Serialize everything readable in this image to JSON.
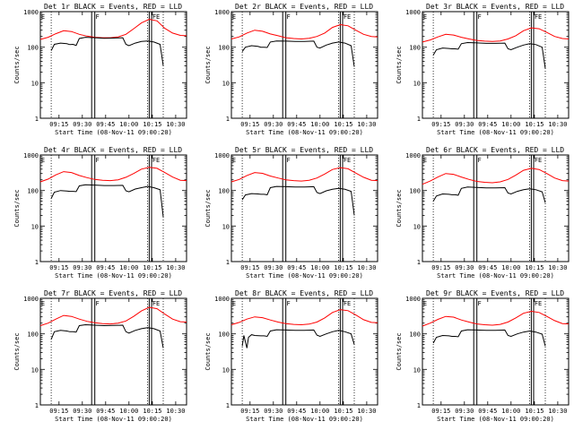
{
  "chart_data": {
    "type": "line",
    "layout": {
      "rows": 3,
      "cols": 3
    },
    "x_ticks": [
      "09:15",
      "09:30",
      "09:45",
      "10:00",
      "10:15",
      "10:30"
    ],
    "x_tick_values": [
      15,
      30,
      45,
      60,
      75,
      90
    ],
    "x_range_minutes": [
      3,
      97
    ],
    "y_scale": "log",
    "y_ticks": [
      "1",
      "10",
      "100",
      "1000"
    ],
    "ylim": [
      1,
      1000
    ],
    "ylabel": "Counts/sec",
    "xlabel": "Start Time (08-Nov-11 09:00:20)",
    "vertical_dotted_lines_minutes": [
      10,
      72,
      82
    ],
    "vertical_solid_lines_minutes": [
      36,
      38,
      73,
      74.5
    ],
    "region_labels": [
      {
        "text": "E",
        "x": 3.5
      },
      {
        "text": "F",
        "x": 38.5
      },
      {
        "text": "FE",
        "x": 75
      }
    ],
    "panels": [
      {
        "title": "Det 1r BLACK = Events, RED = LLD",
        "series": [
          {
            "color": "#ff0000",
            "x": [
              3,
              8,
              13,
              18,
              23,
              28,
              33,
              38,
              43,
              48,
              53,
              58,
              63,
              68,
              73,
              78,
              83,
              88,
              93,
              97
            ],
            "y": [
              165,
              190,
              240,
              290,
              275,
              230,
              205,
              190,
              185,
              185,
              195,
              230,
              330,
              480,
              610,
              550,
              340,
              250,
              215,
              210
            ]
          },
          {
            "color": "#000000",
            "x": [
              10,
              12,
              16,
              20,
              22,
              24,
              26,
              28,
              32,
              38,
              44,
              50,
              56,
              58,
              60,
              64,
              68,
              72,
              76,
              80,
              82
            ],
            "y": [
              80,
              120,
              130,
              125,
              118,
              120,
              112,
              175,
              190,
              185,
              178,
              180,
              185,
              120,
              110,
              130,
              145,
              150,
              140,
              120,
              30
            ]
          }
        ]
      },
      {
        "title": "Det 2r BLACK = Events, RED = LLD",
        "series": [
          {
            "color": "#ff0000",
            "x": [
              3,
              8,
              13,
              18,
              23,
              28,
              33,
              38,
              43,
              48,
              53,
              58,
              63,
              68,
              73,
              78,
              83,
              88,
              93,
              97
            ],
            "y": [
              170,
              195,
              250,
              300,
              280,
              235,
              210,
              185,
              175,
              170,
              178,
              200,
              250,
              360,
              430,
              400,
              300,
              230,
              200,
              195
            ]
          },
          {
            "color": "#000000",
            "x": [
              10,
              12,
              16,
              20,
              22,
              24,
              26,
              28,
              32,
              38,
              44,
              50,
              56,
              58,
              60,
              64,
              68,
              72,
              76,
              80,
              82
            ],
            "y": [
              75,
              100,
              110,
              105,
              100,
              100,
              98,
              140,
              150,
              148,
              145,
              145,
              148,
              100,
              95,
              115,
              130,
              140,
              130,
              110,
              28
            ]
          }
        ]
      },
      {
        "title": "Det 3r BLACK = Events, RED = LLD",
        "series": [
          {
            "color": "#ff0000",
            "x": [
              3,
              8,
              13,
              18,
              23,
              28,
              33,
              38,
              43,
              48,
              53,
              58,
              63,
              68,
              73,
              78,
              83,
              88,
              93,
              97
            ],
            "y": [
              140,
              160,
              195,
              230,
              220,
              190,
              170,
              155,
              148,
              145,
              150,
              170,
              210,
              290,
              350,
              330,
              260,
              200,
              175,
              170
            ]
          },
          {
            "color": "#000000",
            "x": [
              10,
              12,
              16,
              20,
              22,
              24,
              26,
              28,
              32,
              38,
              44,
              50,
              56,
              58,
              60,
              64,
              68,
              72,
              76,
              80,
              82
            ],
            "y": [
              60,
              85,
              95,
              92,
              90,
              90,
              88,
              125,
              135,
              132,
              128,
              128,
              130,
              90,
              85,
              100,
              115,
              125,
              118,
              100,
              25
            ]
          }
        ]
      },
      {
        "title": "Det 4r BLACK = Events, RED = LLD",
        "series": [
          {
            "color": "#ff0000",
            "x": [
              3,
              8,
              13,
              18,
              23,
              28,
              33,
              38,
              43,
              48,
              53,
              58,
              63,
              68,
              73,
              78,
              83,
              88,
              93,
              97
            ],
            "y": [
              175,
              210,
              275,
              340,
              320,
              265,
              230,
              205,
              195,
              190,
              200,
              235,
              300,
              400,
              450,
              420,
              320,
              240,
              195,
              190
            ]
          },
          {
            "color": "#000000",
            "x": [
              10,
              12,
              16,
              20,
              22,
              24,
              26,
              28,
              32,
              38,
              44,
              50,
              56,
              58,
              60,
              64,
              68,
              72,
              76,
              80,
              82
            ],
            "y": [
              60,
              90,
              100,
              97,
              95,
              95,
              93,
              135,
              145,
              142,
              138,
              138,
              140,
              98,
              92,
              110,
              120,
              130,
              120,
              105,
              18
            ]
          }
        ]
      },
      {
        "title": "Det 5r BLACK = Events, RED = LLD",
        "series": [
          {
            "color": "#ff0000",
            "x": [
              3,
              8,
              13,
              18,
              23,
              28,
              33,
              38,
              43,
              48,
              53,
              58,
              63,
              68,
              73,
              78,
              83,
              88,
              93,
              97
            ],
            "y": [
              175,
              205,
              265,
              320,
              305,
              255,
              225,
              200,
              190,
              185,
              195,
              225,
              290,
              390,
              440,
              410,
              310,
              235,
              195,
              190
            ]
          },
          {
            "color": "#000000",
            "x": [
              10,
              12,
              16,
              20,
              22,
              24,
              26,
              28,
              32,
              38,
              44,
              50,
              56,
              58,
              60,
              64,
              68,
              72,
              76,
              80,
              82
            ],
            "y": [
              55,
              75,
              82,
              80,
              78,
              78,
              76,
              120,
              130,
              128,
              125,
              125,
              128,
              88,
              82,
              98,
              108,
              115,
              108,
              95,
              20
            ]
          }
        ]
      },
      {
        "title": "Det 6r BLACK = Events, RED = LLD",
        "series": [
          {
            "color": "#ff0000",
            "x": [
              3,
              8,
              13,
              18,
              23,
              28,
              33,
              38,
              43,
              48,
              53,
              58,
              63,
              68,
              73,
              78,
              83,
              88,
              93,
              97
            ],
            "y": [
              150,
              185,
              240,
              300,
              285,
              240,
              205,
              180,
              170,
              165,
              175,
              205,
              270,
              370,
              420,
              390,
              300,
              225,
              190,
              185
            ]
          },
          {
            "color": "#000000",
            "x": [
              10,
              12,
              16,
              20,
              22,
              24,
              26,
              28,
              32,
              38,
              44,
              50,
              56,
              58,
              60,
              64,
              68,
              72,
              76,
              80,
              82
            ],
            "y": [
              50,
              70,
              80,
              78,
              76,
              76,
              74,
              115,
              125,
              122,
              118,
              118,
              120,
              85,
              80,
              95,
              105,
              112,
              105,
              92,
              45
            ]
          }
        ]
      },
      {
        "title": "Det 7r BLACK = Events, RED = LLD",
        "series": [
          {
            "color": "#ff0000",
            "x": [
              3,
              8,
              13,
              18,
              23,
              28,
              33,
              38,
              43,
              48,
              53,
              58,
              63,
              68,
              73,
              78,
              83,
              88,
              93,
              97
            ],
            "y": [
              170,
              200,
              260,
              330,
              310,
              260,
              225,
              205,
              195,
              190,
              200,
              230,
              310,
              440,
              560,
              510,
              360,
              260,
              220,
              215
            ]
          },
          {
            "color": "#000000",
            "x": [
              10,
              12,
              16,
              20,
              22,
              24,
              26,
              28,
              32,
              38,
              44,
              50,
              56,
              58,
              60,
              64,
              68,
              72,
              76,
              80,
              82
            ],
            "y": [
              70,
              115,
              125,
              120,
              115,
              115,
              112,
              170,
              180,
              175,
              170,
              172,
              175,
              115,
              105,
              125,
              140,
              150,
              140,
              120,
              40
            ]
          }
        ]
      },
      {
        "title": "Det 8r BLACK = Events, RED = LLD",
        "series": [
          {
            "color": "#ff0000",
            "x": [
              3,
              8,
              13,
              18,
              23,
              28,
              33,
              38,
              43,
              48,
              53,
              58,
              63,
              68,
              73,
              78,
              83,
              88,
              93,
              97
            ],
            "y": [
              180,
              210,
              260,
              300,
              285,
              245,
              215,
              195,
              185,
              180,
              188,
              215,
              280,
              400,
              480,
              450,
              340,
              250,
              210,
              205
            ]
          },
          {
            "color": "#000000",
            "x": [
              10,
              11,
              13,
              14,
              16,
              18,
              22,
              24,
              26,
              28,
              32,
              38,
              44,
              50,
              56,
              58,
              60,
              64,
              68,
              72,
              76,
              80,
              82
            ],
            "y": [
              45,
              90,
              40,
              80,
              95,
              90,
              88,
              88,
              85,
              120,
              130,
              128,
              125,
              125,
              128,
              92,
              85,
              100,
              115,
              125,
              115,
              100,
              50
            ]
          }
        ]
      },
      {
        "title": "Det 9r BLACK = Events, RED = LLD",
        "series": [
          {
            "color": "#ff0000",
            "x": [
              3,
              8,
              13,
              18,
              23,
              28,
              33,
              38,
              43,
              48,
              53,
              58,
              63,
              68,
              73,
              78,
              83,
              88,
              93,
              97
            ],
            "y": [
              165,
              200,
              255,
              310,
              295,
              245,
              215,
              190,
              180,
              175,
              185,
              215,
              280,
              380,
              430,
              400,
              310,
              235,
              195,
              190
            ]
          },
          {
            "color": "#000000",
            "x": [
              10,
              12,
              16,
              20,
              22,
              24,
              26,
              28,
              32,
              38,
              44,
              50,
              56,
              58,
              60,
              64,
              68,
              72,
              76,
              80,
              82
            ],
            "y": [
              55,
              80,
              90,
              88,
              85,
              85,
              83,
              120,
              130,
              128,
              125,
              125,
              128,
              90,
              85,
              100,
              112,
              120,
              112,
              98,
              45
            ]
          }
        ]
      }
    ]
  }
}
